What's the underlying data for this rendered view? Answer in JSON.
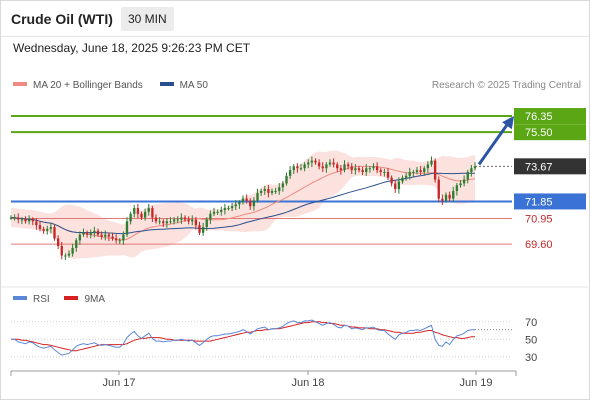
{
  "header": {
    "title": "Crude Oil (WTI)",
    "timeframe": "30 MIN",
    "datetime": "Wednesday, June 18, 2025 9:26:23 PM CET"
  },
  "legend": {
    "ma20_label": "MA 20 + Bollinger Bands",
    "ma50_label": "MA 50",
    "credit": "Research © 2025 Trading Central"
  },
  "rsi_legend": {
    "rsi_label": "RSI",
    "ma9_label": "9MA"
  },
  "colors": {
    "bull": "#2e7d32",
    "bear": "#c62828",
    "ma20": "#ef8a80",
    "band": "#fbd5d0",
    "ma50": "#2a4f8f",
    "resistance": "#5aa614",
    "pivot": "#3b72d6",
    "support": "#e07a78",
    "arrow": "#2b55a3",
    "last_price_box": "#333333",
    "rsi": "#5b87d8",
    "rsi_ma": "#d42020"
  },
  "chart_data": [
    {
      "type": "candlestick",
      "title": "",
      "ylim": [
        67.5,
        77.3
      ],
      "x_ticks": [
        "Jun 17",
        "Jun 18",
        "Jun 19"
      ],
      "last_price": "73.67",
      "levels": [
        {
          "value": 76.35,
          "label": "76.35",
          "kind": "resistance"
        },
        {
          "value": 75.5,
          "label": "75.50",
          "kind": "resistance"
        },
        {
          "value": 71.85,
          "label": "71.85",
          "kind": "pivot"
        },
        {
          "value": 70.95,
          "label": "70.95",
          "kind": "support"
        },
        {
          "value": 69.6,
          "label": "69.60",
          "kind": "support"
        }
      ],
      "close_series": [
        71.0,
        71.0,
        70.9,
        70.9,
        70.8,
        70.9,
        70.8,
        70.6,
        70.4,
        70.3,
        70.4,
        70.5,
        69.9,
        69.5,
        69.0,
        69.0,
        69.1,
        69.4,
        69.8,
        70.1,
        70.2,
        70.1,
        70.2,
        70.3,
        70.1,
        70.0,
        70.1,
        70.0,
        69.9,
        69.8,
        69.8,
        70.1,
        70.8,
        71.2,
        71.5,
        71.2,
        71.0,
        71.3,
        71.5,
        71.0,
        70.8,
        70.8,
        70.7,
        70.8,
        70.8,
        70.9,
        70.9,
        71.0,
        70.9,
        70.8,
        70.9,
        70.6,
        70.2,
        70.5,
        70.9,
        71.2,
        71.3,
        71.3,
        71.4,
        71.5,
        71.5,
        71.6,
        71.7,
        71.8,
        72.0,
        71.9,
        71.6,
        71.9,
        72.3,
        72.4,
        72.5,
        72.3,
        72.4,
        72.4,
        72.6,
        72.8,
        73.2,
        73.5,
        73.7,
        73.6,
        73.6,
        73.8,
        73.9,
        74.0,
        73.9,
        73.7,
        73.6,
        73.8,
        73.9,
        73.8,
        73.6,
        73.5,
        73.8,
        73.7,
        73.5,
        73.6,
        73.5,
        73.4,
        73.6,
        73.6,
        73.7,
        73.5,
        73.4,
        73.4,
        73.1,
        72.8,
        72.5,
        72.9,
        73.1,
        73.2,
        73.4,
        73.4,
        73.5,
        73.4,
        73.6,
        73.8,
        74.0,
        73.0,
        72.0,
        71.9,
        72.2,
        72.0,
        72.4,
        72.7,
        72.8,
        73.0,
        73.4,
        73.6,
        73.7
      ],
      "rsi_ylim": [
        15,
        80
      ],
      "rsi_ticks": [
        70,
        50,
        30
      ],
      "rsi": [
        50,
        50,
        47,
        46,
        45,
        47,
        46,
        43,
        41,
        40,
        41,
        42,
        38,
        35,
        32,
        33,
        34,
        38,
        42,
        44,
        45,
        44,
        45,
        46,
        44,
        43,
        44,
        43,
        42,
        41,
        41,
        45,
        52,
        56,
        59,
        54,
        51,
        54,
        57,
        51,
        48,
        48,
        47,
        48,
        48,
        49,
        49,
        50,
        49,
        48,
        49,
        46,
        43,
        46,
        50,
        53,
        54,
        54,
        55,
        56,
        56,
        57,
        58,
        59,
        61,
        59,
        56,
        59,
        62,
        63,
        64,
        61,
        62,
        62,
        63,
        65,
        68,
        70,
        71,
        69,
        69,
        71,
        71,
        72,
        70,
        68,
        66,
        68,
        69,
        67,
        64,
        63,
        66,
        65,
        62,
        63,
        62,
        61,
        63,
        63,
        64,
        61,
        60,
        60,
        56,
        53,
        50,
        55,
        57,
        58,
        60,
        60,
        61,
        60,
        62,
        64,
        66,
        50,
        43,
        42,
        47,
        44,
        50,
        54,
        55,
        57,
        60,
        61,
        61
      ],
      "rsi_ma": [
        50,
        50,
        50,
        49,
        49,
        48,
        47,
        46,
        45,
        44,
        44,
        43,
        42,
        41,
        40,
        39,
        38,
        37,
        37,
        38,
        39,
        40,
        41,
        42,
        43,
        44,
        44,
        44,
        44,
        44,
        44,
        44,
        45,
        47,
        49,
        50,
        51,
        51,
        52,
        52,
        52,
        52,
        51,
        50,
        50,
        49,
        49,
        49,
        49,
        49,
        49,
        48,
        48,
        48,
        48,
        48,
        49,
        50,
        51,
        52,
        53,
        54,
        55,
        56,
        57,
        58,
        58,
        59,
        60,
        60,
        61,
        61,
        62,
        62,
        62,
        63,
        64,
        65,
        66,
        67,
        68,
        69,
        69,
        70,
        70,
        70,
        69,
        69,
        68,
        68,
        67,
        66,
        66,
        65,
        64,
        64,
        63,
        63,
        63,
        62,
        62,
        62,
        61,
        61,
        60,
        59,
        58,
        58,
        57,
        57,
        57,
        57,
        58,
        58,
        59,
        60,
        60,
        58,
        57,
        55,
        54,
        53,
        52,
        52,
        51,
        51,
        52,
        53,
        53
      ]
    }
  ]
}
